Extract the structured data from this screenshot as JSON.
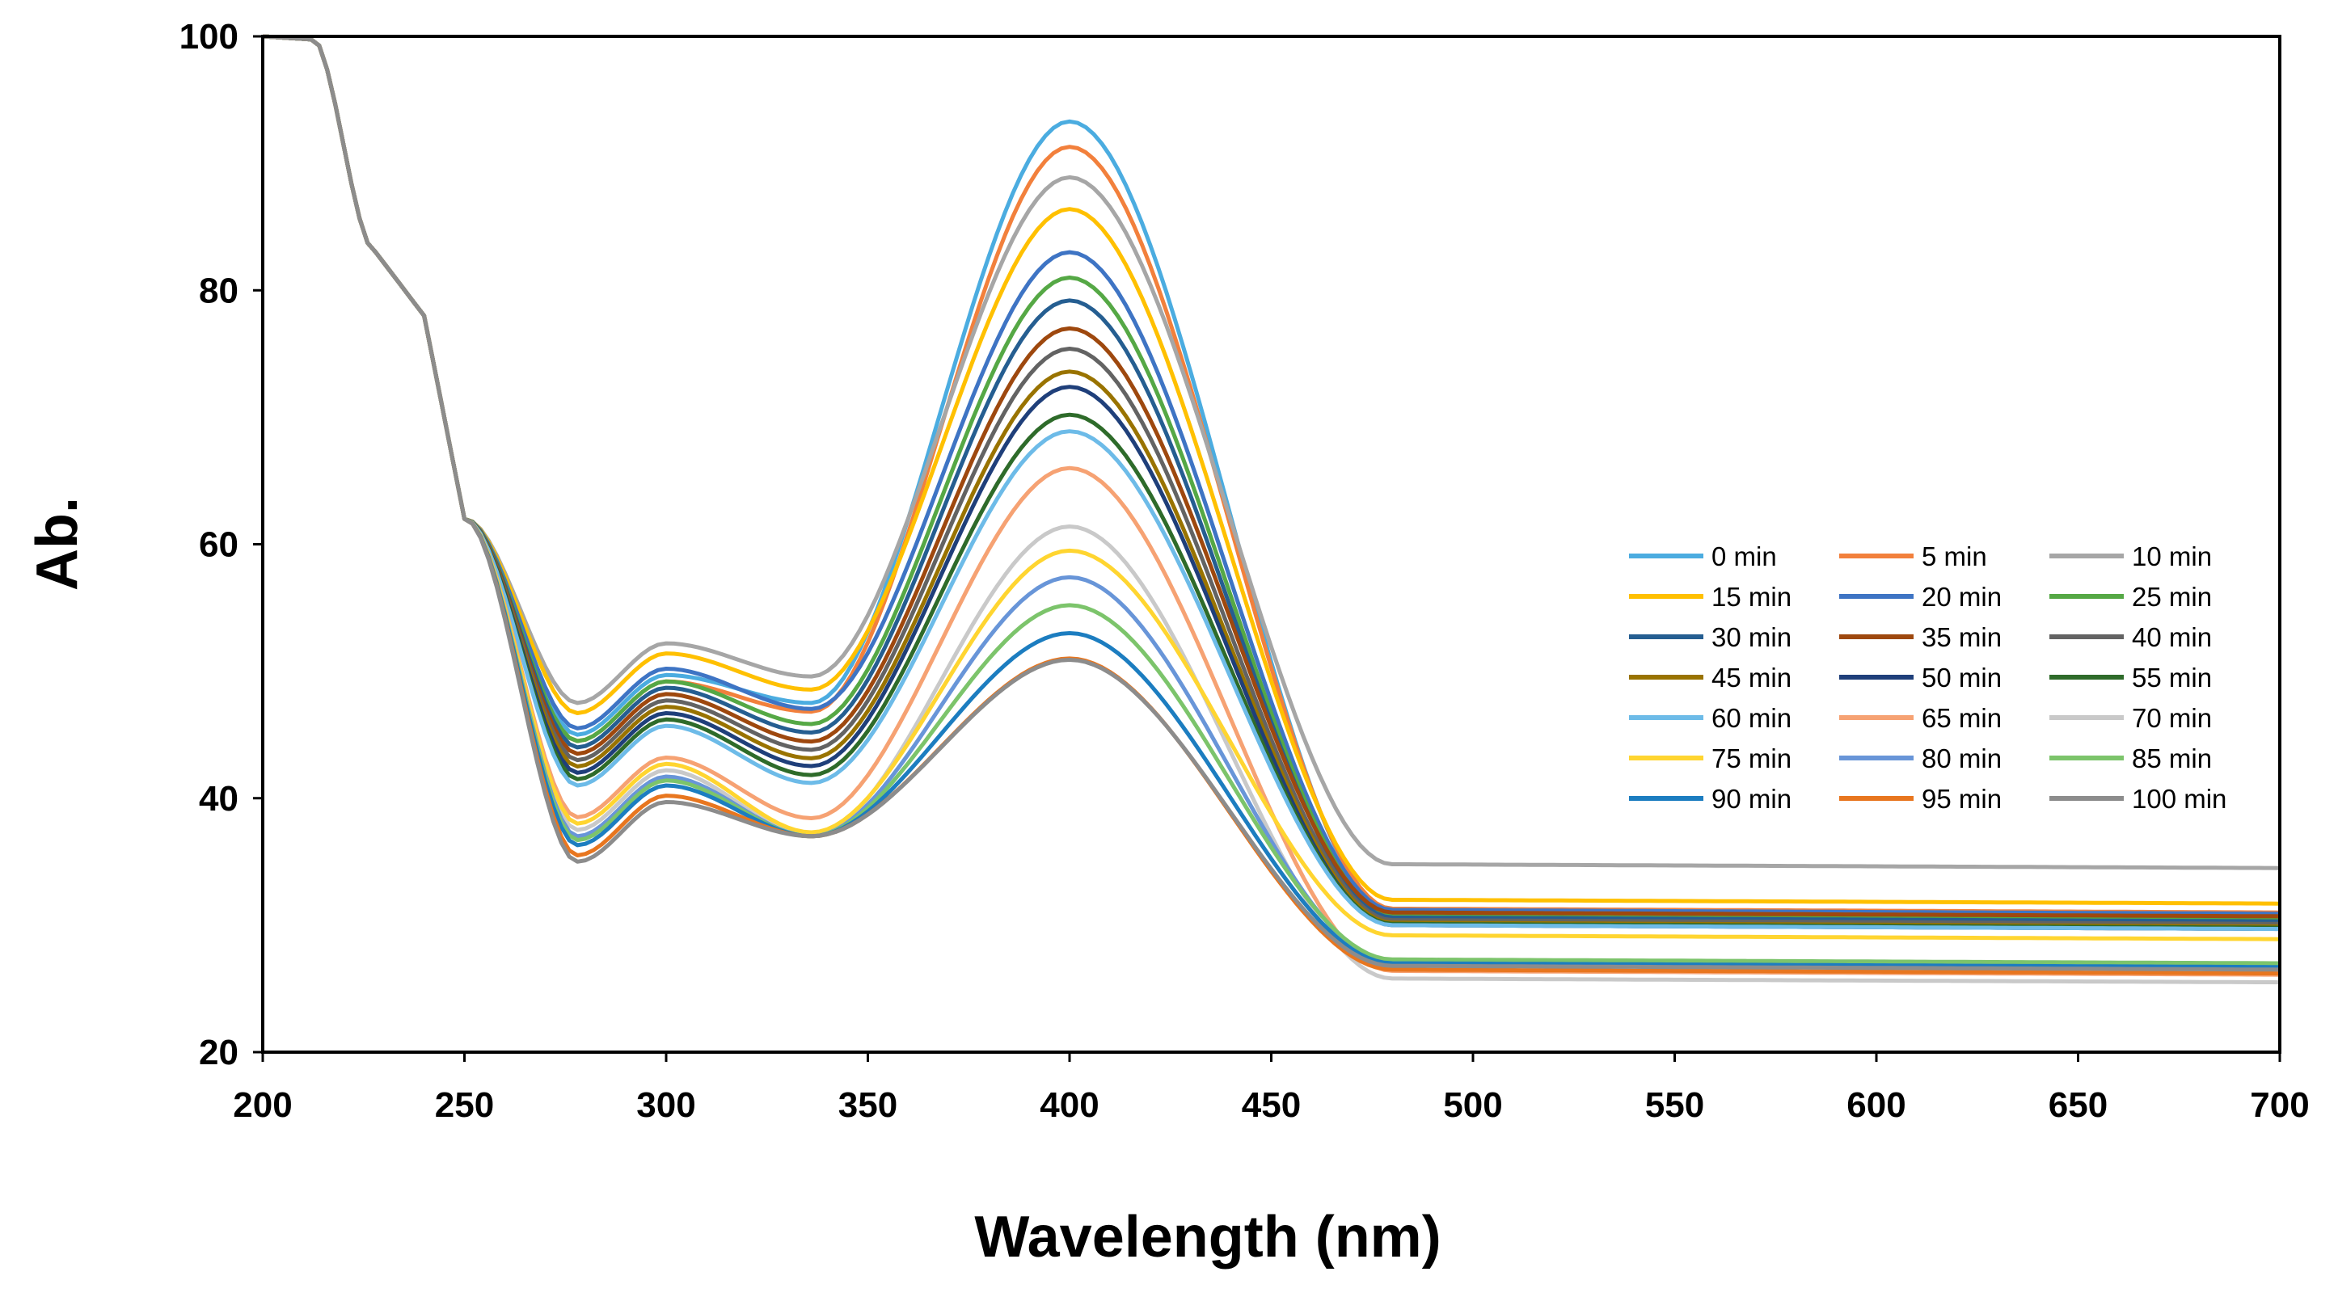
{
  "chart_data": {
    "type": "line",
    "title": "",
    "xlabel": "Wavelength (nm)",
    "ylabel": "Ab.",
    "xlim": [
      200,
      700
    ],
    "ylim": [
      20,
      100
    ],
    "xticks": [
      200,
      250,
      300,
      350,
      400,
      450,
      500,
      550,
      600,
      650,
      700
    ],
    "yticks": [
      20,
      40,
      60,
      80,
      100
    ],
    "x_tick_labels": [
      "200",
      "250",
      "300",
      "350",
      "400",
      "450",
      "500",
      "550",
      "600",
      "650",
      "700"
    ],
    "y_tick_labels": [
      "20",
      "40",
      "60",
      "80",
      "100"
    ],
    "grid": false,
    "legend_position": "right",
    "legend_columns": 3,
    "series": [
      {
        "name": "0 min",
        "color": "#4BACE0",
        "peak": 93.3,
        "valley": 47.5,
        "plateau": 31.0
      },
      {
        "name": "5 min",
        "color": "#F2803C",
        "peak": 91.3,
        "valley": 47.0,
        "plateau": 31.3
      },
      {
        "name": "10 min",
        "color": "#A6A6A6",
        "peak": 88.9,
        "valley": 50.0,
        "plateau": 34.8
      },
      {
        "name": "15 min",
        "color": "#FFC000",
        "peak": 86.4,
        "valley": 49.2,
        "plateau": 32.0
      },
      {
        "name": "20 min",
        "color": "#3E74C4",
        "peak": 83.0,
        "valley": 48.0,
        "plateau": 31.2
      },
      {
        "name": "25 min",
        "color": "#55A845",
        "peak": 81.0,
        "valley": 47.0,
        "plateau": 30.8
      },
      {
        "name": "30 min",
        "color": "#255E91",
        "peak": 79.2,
        "valley": 46.5,
        "plateau": 30.6
      },
      {
        "name": "35 min",
        "color": "#9E480E",
        "peak": 77.0,
        "valley": 46.0,
        "plateau": 31.0
      },
      {
        "name": "40 min",
        "color": "#636363",
        "peak": 75.4,
        "valley": 45.5,
        "plateau": 30.4
      },
      {
        "name": "45 min",
        "color": "#997300",
        "peak": 73.6,
        "valley": 45.0,
        "plateau": 30.2
      },
      {
        "name": "50 min",
        "color": "#1F3F7A",
        "peak": 72.4,
        "valley": 44.5,
        "plateau": 30.0
      },
      {
        "name": "55 min",
        "color": "#2E6B2A",
        "peak": 70.2,
        "valley": 44.0,
        "plateau": 30.1
      },
      {
        "name": "60 min",
        "color": "#6DBBE8",
        "peak": 68.9,
        "valley": 43.5,
        "plateau": 30.0
      },
      {
        "name": "65 min",
        "color": "#F6A273",
        "peak": 66.0,
        "valley": 41.0,
        "plateau": 26.4
      },
      {
        "name": "70 min",
        "color": "#C9C9C9",
        "peak": 61.4,
        "valley": 40.0,
        "plateau": 25.8
      },
      {
        "name": "75 min",
        "color": "#FFD530",
        "peak": 59.5,
        "valley": 40.5,
        "plateau": 29.2
      },
      {
        "name": "80 min",
        "color": "#6895D8",
        "peak": 57.4,
        "valley": 39.5,
        "plateau": 27.0
      },
      {
        "name": "85 min",
        "color": "#7CC46B",
        "peak": 55.2,
        "valley": 39.2,
        "plateau": 27.3
      },
      {
        "name": "90 min",
        "color": "#1C7DC0",
        "peak": 53.0,
        "valley": 38.8,
        "plateau": 27.0
      },
      {
        "name": "95 min",
        "color": "#E8761F",
        "peak": 51.0,
        "valley": 38.0,
        "plateau": 26.5
      },
      {
        "name": "100 min",
        "color": "#8C8C8C",
        "peak": 50.9,
        "valley": 37.5,
        "plateau": 26.8
      }
    ]
  }
}
